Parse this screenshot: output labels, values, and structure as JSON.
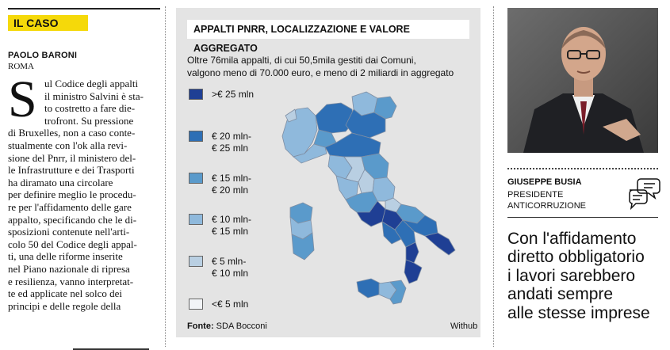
{
  "section_tag": "IL CASO",
  "byline": {
    "author": "PAOLO BARONI",
    "place": "ROMA"
  },
  "article": {
    "dropcap": "S",
    "lines": [
      "ul Codice degli appalti",
      "il ministro Salvini è sta-",
      "to costretto a fare die-",
      "trofront. Su pressione",
      "di Bruxelles, non a caso conte-",
      "stualmente con l'ok alla revi-",
      "sione del Pnrr, il ministero del-",
      "le Infrastrutture e dei Trasporti",
      "ha diramato una circolare",
      "per definire meglio le procedu-",
      "re per l'affidamento delle gare",
      "appalto, specificando che le di-",
      "sposizioni contenute nell'arti-",
      "colo 50 del Codice degli appal-",
      "ti, una delle riforme inserite",
      "nel Piano nazionale di ripresa",
      "e resilienza, vanno interpretat-",
      "te ed applicate nel solco dei",
      "principi e delle regole della"
    ]
  },
  "infographic": {
    "title": "APPALTI PNRR, LOCALIZZAZIONE E VALORE AGGREGATO",
    "subtitle_line1": "Oltre 76mila appalti, di cui 50,5mila gestiti dai Comuni,",
    "subtitle_line2": "valgono meno di 70.000 euro, e meno di 2 miliardi in aggregato",
    "legend": [
      {
        "line1": ">€ 25 mln",
        "line2": "",
        "color": "#1f3f94"
      },
      {
        "line1": "€ 20 mln-",
        "line2": "€ 25 mln",
        "color": "#2e6fb5"
      },
      {
        "line1": "€ 15 mln-",
        "line2": "€ 20 mln",
        "color": "#5a9acb"
      },
      {
        "line1": "€ 10 mln-",
        "line2": "€ 15 mln",
        "color": "#8fb9dc"
      },
      {
        "line1": "€ 5 mln-",
        "line2": "€ 10 mln",
        "color": "#b9cfe2"
      },
      {
        "line1": "<€ 5 mln",
        "line2": "",
        "color": "#f2f4f7"
      }
    ],
    "source_label": "Fonte:",
    "source_value": " SDA Bocconi",
    "credit": "Withub",
    "colors": {
      "background": "#e4e4e4",
      "border": "#7f8ea3"
    }
  },
  "person": {
    "name": "GIUSEPPE BUSIA",
    "role_line1": "PRESIDENTE",
    "role_line2": "ANTICORRUZIONE",
    "icon": "speech-bubbles-icon"
  },
  "quote": {
    "lines": [
      "Con l'affidamento",
      "diretto obbligatorio",
      "i lavori sarebbero",
      "andati sempre",
      "alle stesse imprese"
    ]
  }
}
